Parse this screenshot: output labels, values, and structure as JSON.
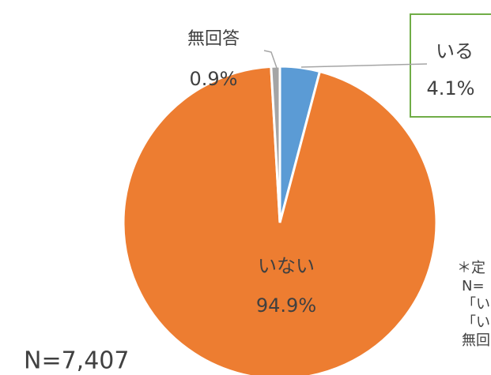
{
  "chart_data": {
    "type": "pie",
    "categories": [
      "いる",
      "いない",
      "無回答"
    ],
    "values": [
      4.1,
      94.9,
      0.9
    ],
    "value_labels": [
      "4.1%",
      "94.9%",
      "0.9%"
    ],
    "colors": [
      "#5b9bd5",
      "#ed7d31",
      "#a5a5a5"
    ],
    "annotation": "N=7,407",
    "notes": [
      "＊定",
      "N=",
      "「い",
      "「い",
      "無回"
    ]
  }
}
